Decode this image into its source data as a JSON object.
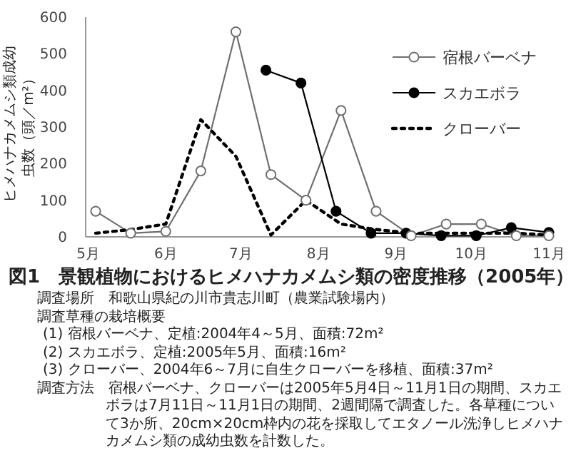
{
  "chart_data": {
    "type": "line",
    "title": "図1　景観植物におけるヒメハナカメムシ類の密度推移（2005年）",
    "ylabel": "ヒメハナカメムシ類成幼虫数（頭／m²）",
    "x": [
      "2005-05-04",
      "2005-05-18",
      "2005-06-01",
      "2005-06-15",
      "2005-06-29",
      "2005-07-13",
      "2005-07-27",
      "2005-08-10",
      "2005-08-24",
      "2005-09-07",
      "2005-09-21",
      "2005-10-05",
      "2005-10-19",
      "2005-11-01"
    ],
    "series": [
      {
        "name": "宿根バーベナ",
        "color": "#707070",
        "marker": "circle",
        "line_style": "solid",
        "values": [
          70,
          10,
          15,
          180,
          560,
          170,
          100,
          345,
          70,
          3,
          35,
          35,
          3,
          3
        ]
      },
      {
        "name": "スカエボラ",
        "color": "#000000",
        "marker": "circle",
        "line_style": "solid",
        "x": [
          "2005-07-11",
          "2005-07-25",
          "2005-08-08",
          "2005-08-22",
          "2005-09-05",
          "2005-09-19",
          "2005-10-03",
          "2005-10-17",
          "2005-11-01"
        ],
        "values": [
          455,
          420,
          70,
          10,
          10,
          3,
          3,
          25,
          12
        ]
      },
      {
        "name": "クローバー",
        "color": "#000000",
        "marker": "none",
        "line_style": "dotted",
        "values": [
          10,
          20,
          35,
          320,
          220,
          5,
          100,
          35,
          20,
          10,
          10,
          10,
          10,
          5
        ]
      }
    ],
    "xlim": [
      "2005-04-30",
      "2005-11-03"
    ],
    "xticks": [
      {
        "value": "2005-05-01",
        "label": "5月"
      },
      {
        "value": "2005-06-01",
        "label": "6月"
      },
      {
        "value": "2005-07-01",
        "label": "7月"
      },
      {
        "value": "2005-08-01",
        "label": "8月"
      },
      {
        "value": "2005-09-01",
        "label": "9月"
      },
      {
        "value": "2005-10-01",
        "label": "10月"
      },
      {
        "value": "2005-11-01",
        "label": "11月"
      }
    ],
    "ylim": [
      0,
      600
    ],
    "yticks": [
      0,
      100,
      200,
      300,
      400,
      500,
      600
    ],
    "grid": false,
    "legend": "top right",
    "annotations": [
      "調査場所　和歌山県紀の川市貴志川町（農業試験場内）",
      "調査草種の栽培概要",
      "(1) 宿根バーベナ、定植:2004年4～5月、面積:72m²",
      "(2) スカエボラ、定植:2005年5月、面積:16m²",
      "(3) クローバー、2004年6～7月に自生クローバーを移植、面積:37m²",
      "調査方法　宿根バーベナ、クローバーは2005年5月4日～11月1日の期間、スカエボラは7月11日～11月1日の期間、2週間隔で調査した。各草種について3か所、20cm×20cm枠内の花を採取してエタノール洗浄しヒメハナカメムシ類の成幼虫数を計数した。"
    ]
  }
}
